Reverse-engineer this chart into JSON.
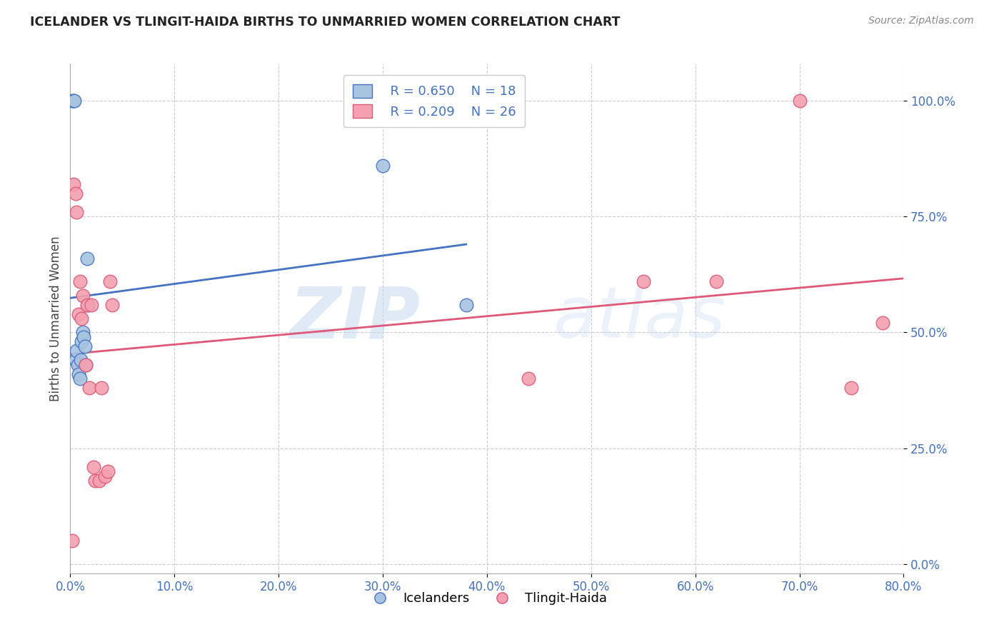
{
  "title": "ICELANDER VS TLINGIT-HAIDA BIRTHS TO UNMARRIED WOMEN CORRELATION CHART",
  "source": "Source: ZipAtlas.com",
  "ylabel": "Births to Unmarried Women",
  "xlim": [
    0.0,
    0.8
  ],
  "ylim": [
    -0.02,
    1.08
  ],
  "xlabel_ticks": [
    0.0,
    0.1,
    0.2,
    0.3,
    0.4,
    0.5,
    0.6,
    0.7,
    0.8
  ],
  "ylabel_ticks": [
    0.0,
    0.25,
    0.5,
    0.75,
    1.0
  ],
  "icelander_x": [
    0.002,
    0.003,
    0.004,
    0.005,
    0.006,
    0.007,
    0.008,
    0.009,
    0.01,
    0.011,
    0.012,
    0.013,
    0.014,
    0.015,
    0.016,
    0.017,
    0.3,
    0.38
  ],
  "icelander_y": [
    1.0,
    1.0,
    1.0,
    0.44,
    0.46,
    0.43,
    0.41,
    0.4,
    0.44,
    0.48,
    0.5,
    0.49,
    0.47,
    0.43,
    0.66,
    0.56,
    0.86,
    0.56
  ],
  "tlingit_x": [
    0.002,
    0.003,
    0.005,
    0.006,
    0.008,
    0.009,
    0.011,
    0.012,
    0.015,
    0.016,
    0.018,
    0.02,
    0.022,
    0.024,
    0.028,
    0.03,
    0.033,
    0.036,
    0.038,
    0.04,
    0.44,
    0.55,
    0.62,
    0.7,
    0.75,
    0.78
  ],
  "tlingit_y": [
    0.05,
    0.82,
    0.8,
    0.76,
    0.54,
    0.61,
    0.53,
    0.58,
    0.43,
    0.56,
    0.38,
    0.56,
    0.21,
    0.18,
    0.18,
    0.38,
    0.19,
    0.2,
    0.61,
    0.56,
    0.4,
    0.61,
    0.61,
    1.0,
    0.38,
    0.52
  ],
  "icelander_color": "#a8c4e0",
  "tlingit_color": "#f4a0b0",
  "icelander_line_color": "#4472c4",
  "tlingit_line_color": "#e05878",
  "legend_R_icelander": "R = 0.650",
  "legend_N_icelander": "N = 18",
  "legend_R_tlingit": "R = 0.209",
  "legend_N_tlingit": "N = 26",
  "watermark_zip": "ZIP",
  "watermark_atlas": "atlas",
  "grid_color": "#cccccc",
  "axis_label_color": "#4472c4",
  "title_color": "#222222",
  "background_color": "#ffffff",
  "icel_line_x": [
    0.0,
    0.38
  ],
  "tlin_line_x": [
    0.0,
    0.8
  ]
}
